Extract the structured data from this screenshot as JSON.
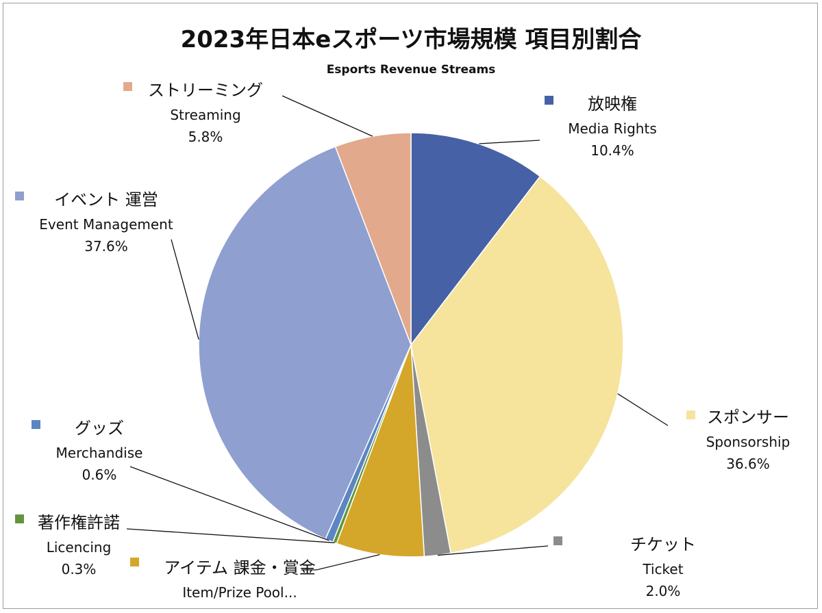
{
  "chart_data": {
    "type": "pie",
    "title": "2023年日本eスポーツ市場規模 項目別割合",
    "subtitle": "Esports Revenue Streams",
    "slices": [
      {
        "jp": "放映権",
        "en": "Media Rights",
        "value": 10.4,
        "pct_label": "10.4%",
        "color": "#4661a5"
      },
      {
        "jp": "スポンサー",
        "en": "Sponsorship",
        "value": 36.6,
        "pct_label": "36.6%",
        "color": "#f6e39c"
      },
      {
        "jp": "チケット",
        "en": "Ticket",
        "value": 2.0,
        "pct_label": "2.0%",
        "color": "#8c8c8c"
      },
      {
        "jp": "アイテム 課金・賞金",
        "en": "Item/Prize Pool...",
        "value": 6.7,
        "pct_label": "",
        "color": "#d4a62a"
      },
      {
        "jp": "著作権許諾",
        "en": "Licencing",
        "value": 0.3,
        "pct_label": "0.3%",
        "color": "#63963c"
      },
      {
        "jp": "グッズ",
        "en": "Merchandise",
        "value": 0.6,
        "pct_label": "0.6%",
        "color": "#5b85c3"
      },
      {
        "jp": "イベント 運営",
        "en": "Event Management",
        "value": 37.6,
        "pct_label": "37.6%",
        "color": "#8f9fd0"
      },
      {
        "jp": "ストリーミング",
        "en": "Streaming",
        "value": 5.8,
        "pct_label": "5.8%",
        "color": "#e3a98c"
      }
    ]
  }
}
